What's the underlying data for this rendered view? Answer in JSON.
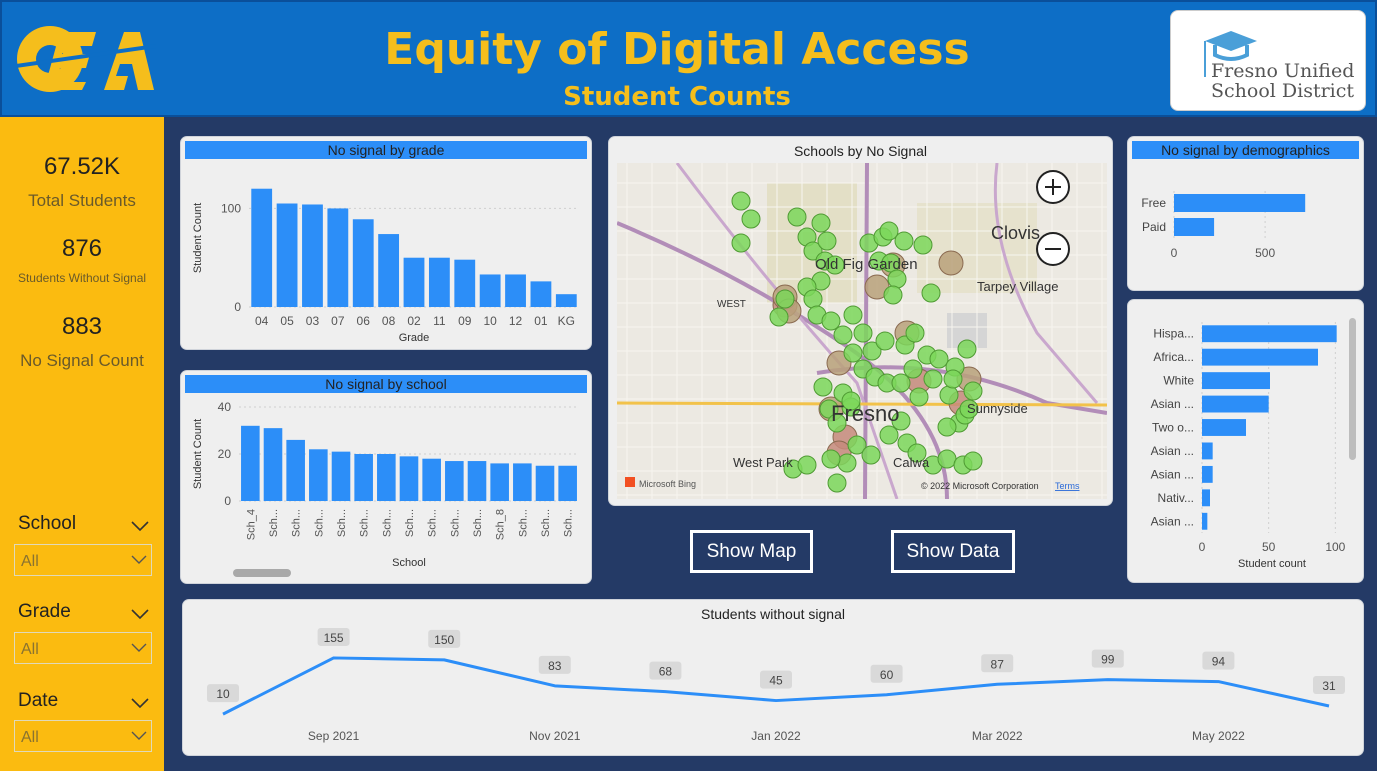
{
  "header": {
    "logo_text": "OEA",
    "title": "Equity of Digital Access",
    "subtitle": "Student Counts",
    "district_line1": "Fresno Unified",
    "district_line2": "School District"
  },
  "kpis": [
    {
      "value": "67.52K",
      "label": "Total Students"
    },
    {
      "value": "876",
      "label": "Students Without Signal"
    },
    {
      "value": "883",
      "label": "No Signal Count"
    }
  ],
  "slicers": [
    {
      "title": "School",
      "value": "All"
    },
    {
      "title": "Grade",
      "value": "All"
    },
    {
      "title": "Date",
      "value": "All"
    }
  ],
  "buttons": {
    "show_map": "Show Map",
    "show_data": "Show Data"
  },
  "colors": {
    "bar": "#2c8ef8",
    "accent": "#f5be1c",
    "line": "#2c8ef8"
  },
  "map": {
    "title": "Schools by No Signal",
    "labels": [
      "Clovis",
      "Old Fig Garden",
      "Tarpey Village",
      "WEST",
      "Fresno",
      "West Park",
      "Calwa",
      "Sunnyside"
    ],
    "attribution": "© 2022 Microsoft Corporation",
    "terms": "Terms",
    "provider": "Microsoft Bing",
    "zoom_in_icon": "plus-icon",
    "zoom_out_icon": "minus-icon"
  },
  "chart_data": [
    {
      "type": "bar",
      "title": "No signal by grade",
      "xlabel": "Grade",
      "ylabel": "Student Count",
      "categories": [
        "04",
        "05",
        "03",
        "07",
        "06",
        "08",
        "02",
        "11",
        "09",
        "10",
        "12",
        "01",
        "KG"
      ],
      "values": [
        120,
        105,
        104,
        100,
        89,
        74,
        50,
        50,
        48,
        33,
        33,
        26,
        13
      ],
      "ylim": [
        0,
        140
      ],
      "yticks": [
        0,
        100
      ]
    },
    {
      "type": "bar",
      "title": "No signal by school",
      "xlabel": "School",
      "ylabel": "Student Count",
      "categories": [
        "Sch_4",
        "Sch...",
        "Sch...",
        "Sch...",
        "Sch...",
        "Sch...",
        "Sch...",
        "Sch...",
        "Sch...",
        "Sch...",
        "Sch...",
        "Sch_8",
        "Sch...",
        "Sch...",
        "Sch..."
      ],
      "values": [
        32,
        31,
        26,
        22,
        21,
        20,
        20,
        19,
        18,
        17,
        17,
        16,
        16,
        15,
        15
      ],
      "ylim": [
        0,
        40
      ],
      "yticks": [
        0,
        20,
        40
      ]
    },
    {
      "type": "bar",
      "orientation": "horizontal",
      "title": "No signal by demographics",
      "categories": [
        "Free",
        "Paid"
      ],
      "values": [
        720,
        220
      ],
      "xlim": [
        0,
        900
      ],
      "xticks": [
        0,
        500
      ]
    },
    {
      "type": "bar",
      "orientation": "horizontal",
      "xlabel": "Student count",
      "categories": [
        "Hispa...",
        "Africa...",
        "White",
        "Asian ...",
        "Two o...",
        "Asian ...",
        "Asian ...",
        "Nativ...",
        "Asian ..."
      ],
      "values": [
        101,
        87,
        51,
        50,
        33,
        8,
        8,
        6,
        4
      ],
      "xlim": [
        0,
        105
      ],
      "xticks": [
        0,
        50,
        100
      ]
    },
    {
      "type": "line",
      "title": "Students without signal",
      "x": [
        "Aug 2021",
        "Sep 2021",
        "Oct 2021",
        "Nov 2021",
        "Dec 2021",
        "Jan 2022",
        "Feb 2022",
        "Mar 2022",
        "Apr 2022",
        "May 2022",
        "Jun 2022"
      ],
      "values": [
        10,
        155,
        150,
        83,
        68,
        45,
        60,
        87,
        99,
        94,
        31
      ],
      "xtick_labels": [
        "Sep 2021",
        "Nov 2021",
        "Jan 2022",
        "Mar 2022",
        "May 2022"
      ],
      "ylim": [
        0,
        160
      ]
    }
  ]
}
